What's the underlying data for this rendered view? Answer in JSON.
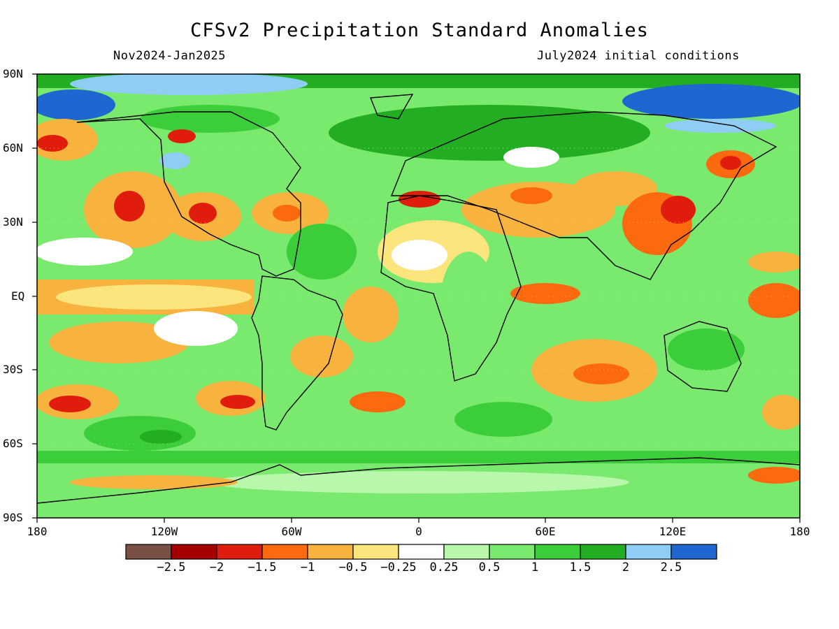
{
  "map": {
    "title": "CFSv2 Precipitation Standard Anomalies",
    "period": "Nov2024-Jan2025",
    "initial_conditions": "July2024 initial conditions",
    "lat_ticks": [
      "90N",
      "60N",
      "30N",
      "EQ",
      "30S",
      "60S",
      "90S"
    ],
    "lon_ticks": [
      "180",
      "120W",
      "60W",
      "0",
      "60E",
      "120E",
      "180"
    ],
    "colorbar": {
      "labels": [
        "−2.5",
        "−2",
        "−1.5",
        "−1",
        "−0.5",
        "−0.25",
        "0.25",
        "0.5",
        "1",
        "1.5",
        "2",
        "2.5"
      ],
      "colors": [
        "#7a4f46",
        "#a50000",
        "#e01c0c",
        "#fb6a0e",
        "#f8b33f",
        "#fde57d",
        "#ffffff",
        "#b9f7ad",
        "#7aea6e",
        "#3ccd3b",
        "#22ad22",
        "#8fcdf5",
        "#1f66d0"
      ]
    }
  }
}
